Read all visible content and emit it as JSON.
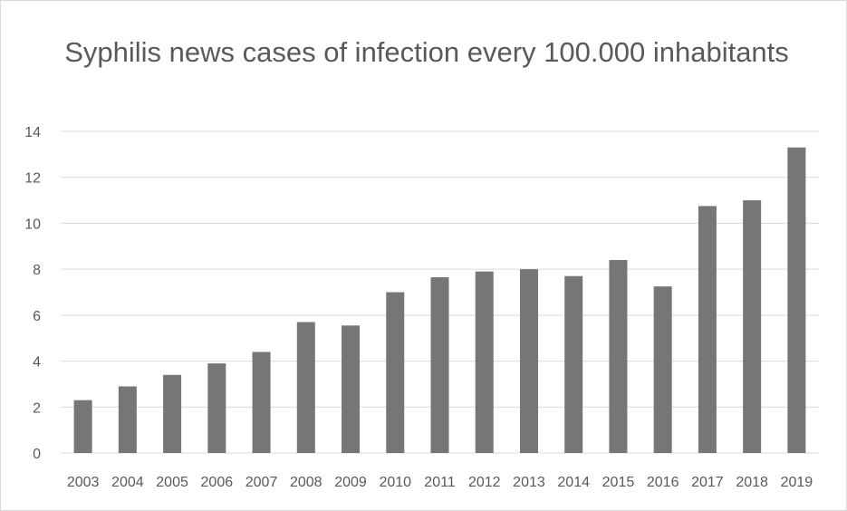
{
  "chart_data": {
    "type": "bar",
    "title": "Syphilis news cases of infection every 100.000 inhabitants",
    "xlabel": "",
    "ylabel": "",
    "categories": [
      "2003",
      "2004",
      "2005",
      "2006",
      "2007",
      "2008",
      "2009",
      "2010",
      "2011",
      "2012",
      "2013",
      "2014",
      "2015",
      "2016",
      "2017",
      "2018",
      "2019"
    ],
    "values": [
      2.3,
      2.9,
      3.4,
      3.9,
      4.4,
      5.7,
      5.55,
      7.0,
      7.65,
      7.9,
      8.0,
      7.7,
      8.4,
      7.25,
      10.75,
      11.0,
      13.3
    ],
    "ylim": [
      0,
      14
    ],
    "yticks": [
      "0",
      "2",
      "4",
      "6",
      "8",
      "10",
      "12",
      "14"
    ],
    "grid": true,
    "legend": "none",
    "bar_color": "#767676",
    "grid_color": "#d9d9d9",
    "text_color": "#595959"
  }
}
